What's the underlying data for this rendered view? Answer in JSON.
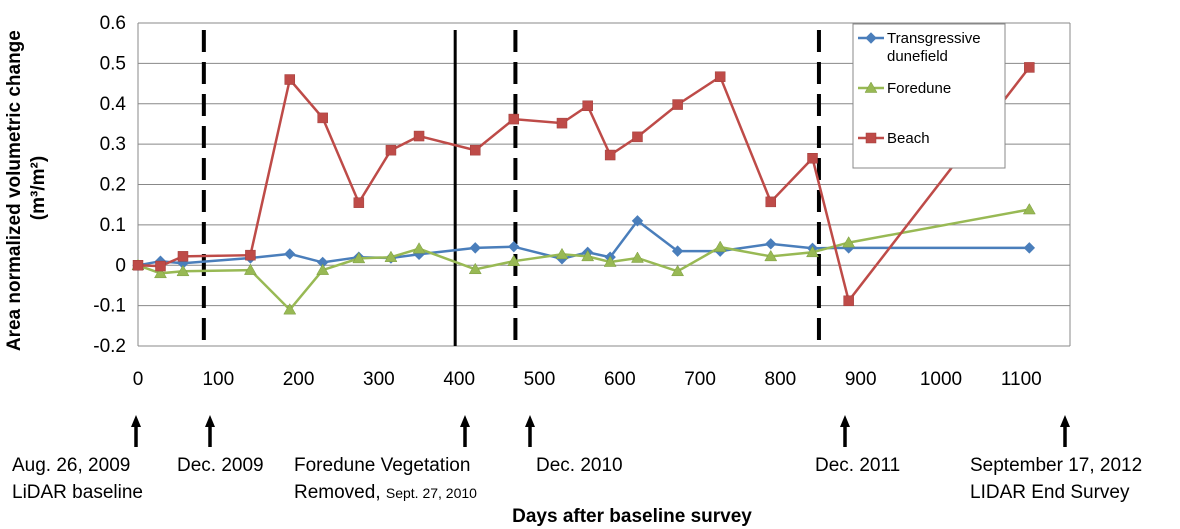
{
  "chart_data": {
    "type": "line",
    "ylabel_line1": "Area normalized volumetric change",
    "ylabel_line2": "(m³/m²)",
    "xlabel": "Days after baseline survey",
    "xlim": [
      0,
      1100
    ],
    "ylim": [
      -0.2,
      0.6
    ],
    "x_ticks": [
      0,
      100,
      200,
      300,
      400,
      500,
      600,
      700,
      800,
      900,
      1000,
      1100
    ],
    "y_ticks": [
      "-0.2",
      "-0.1",
      "0",
      "0.1",
      "0.2",
      "0.3",
      "0.4",
      "0.5",
      "0.6"
    ],
    "grid": "horizontal",
    "legend_position": "top-right",
    "series": [
      {
        "name": "Transgressive dunefield",
        "legend_lines": [
          "Transgressive",
          "dunefield"
        ],
        "color": "#4a7ebb",
        "marker": "diamond",
        "points": [
          [
            0,
            0.0
          ],
          [
            28,
            0.01
          ],
          [
            56,
            0.005
          ],
          [
            140,
            0.018
          ],
          [
            189,
            0.028
          ],
          [
            230,
            0.007
          ],
          [
            275,
            0.02
          ],
          [
            315,
            0.018
          ],
          [
            350,
            0.027
          ],
          [
            420,
            0.043
          ],
          [
            468,
            0.046
          ],
          [
            528,
            0.016
          ],
          [
            560,
            0.032
          ],
          [
            588,
            0.02
          ],
          [
            622,
            0.11
          ],
          [
            672,
            0.035
          ],
          [
            725,
            0.035
          ],
          [
            788,
            0.053
          ],
          [
            840,
            0.042
          ],
          [
            885,
            0.043
          ],
          [
            1110,
            0.043
          ]
        ]
      },
      {
        "name": "Foredune",
        "legend_lines": [
          "Foredune"
        ],
        "color": "#98b954",
        "marker": "triangle",
        "points": [
          [
            0,
            0.0
          ],
          [
            28,
            -0.02
          ],
          [
            56,
            -0.015
          ],
          [
            140,
            -0.012
          ],
          [
            189,
            -0.11
          ],
          [
            230,
            -0.012
          ],
          [
            275,
            0.017
          ],
          [
            315,
            0.02
          ],
          [
            350,
            0.041
          ],
          [
            420,
            -0.01
          ],
          [
            468,
            0.01
          ],
          [
            528,
            0.027
          ],
          [
            560,
            0.022
          ],
          [
            588,
            0.008
          ],
          [
            622,
            0.018
          ],
          [
            672,
            -0.015
          ],
          [
            725,
            0.045
          ],
          [
            788,
            0.022
          ],
          [
            840,
            0.032
          ],
          [
            885,
            0.056
          ],
          [
            1110,
            0.138
          ]
        ]
      },
      {
        "name": "Beach",
        "legend_lines": [
          "Beach"
        ],
        "color": "#be4b48",
        "marker": "square",
        "points": [
          [
            0,
            0.0
          ],
          [
            28,
            -0.002
          ],
          [
            56,
            0.022
          ],
          [
            140,
            0.025
          ],
          [
            189,
            0.46
          ],
          [
            230,
            0.365
          ],
          [
            275,
            0.155
          ],
          [
            315,
            0.285
          ],
          [
            350,
            0.32
          ],
          [
            420,
            0.285
          ],
          [
            468,
            0.362
          ],
          [
            528,
            0.352
          ],
          [
            560,
            0.395
          ],
          [
            588,
            0.273
          ],
          [
            622,
            0.318
          ],
          [
            672,
            0.398
          ],
          [
            725,
            0.467
          ],
          [
            788,
            0.157
          ],
          [
            840,
            0.265
          ],
          [
            885,
            -0.088
          ],
          [
            1110,
            0.49
          ]
        ]
      }
    ],
    "vertical_lines": [
      {
        "x": 82,
        "style": "dashed"
      },
      {
        "x": 395,
        "style": "solid"
      },
      {
        "x": 470,
        "style": "dashed"
      },
      {
        "x": 848,
        "style": "dashed"
      }
    ],
    "events": [
      {
        "x": 0,
        "line1": "Aug. 26, 2009",
        "line2": "LiDAR baseline",
        "line2_small": ""
      },
      {
        "x": 82,
        "line1": "Dec. 2009",
        "line2": "",
        "line2_small": ""
      },
      {
        "x": 395,
        "line1": "Foredune Vegetation",
        "line2": "Removed, ",
        "line2_small": "Sept. 27, 2010"
      },
      {
        "x": 470,
        "line1": "Dec. 2010",
        "line2": "",
        "line2_small": ""
      },
      {
        "x": 848,
        "line1": "Dec. 2011",
        "line2": "",
        "line2_small": ""
      },
      {
        "x": 1110,
        "line1": "September 17, 2012",
        "line2": "LIDAR End Survey",
        "line2_small": ""
      }
    ]
  }
}
